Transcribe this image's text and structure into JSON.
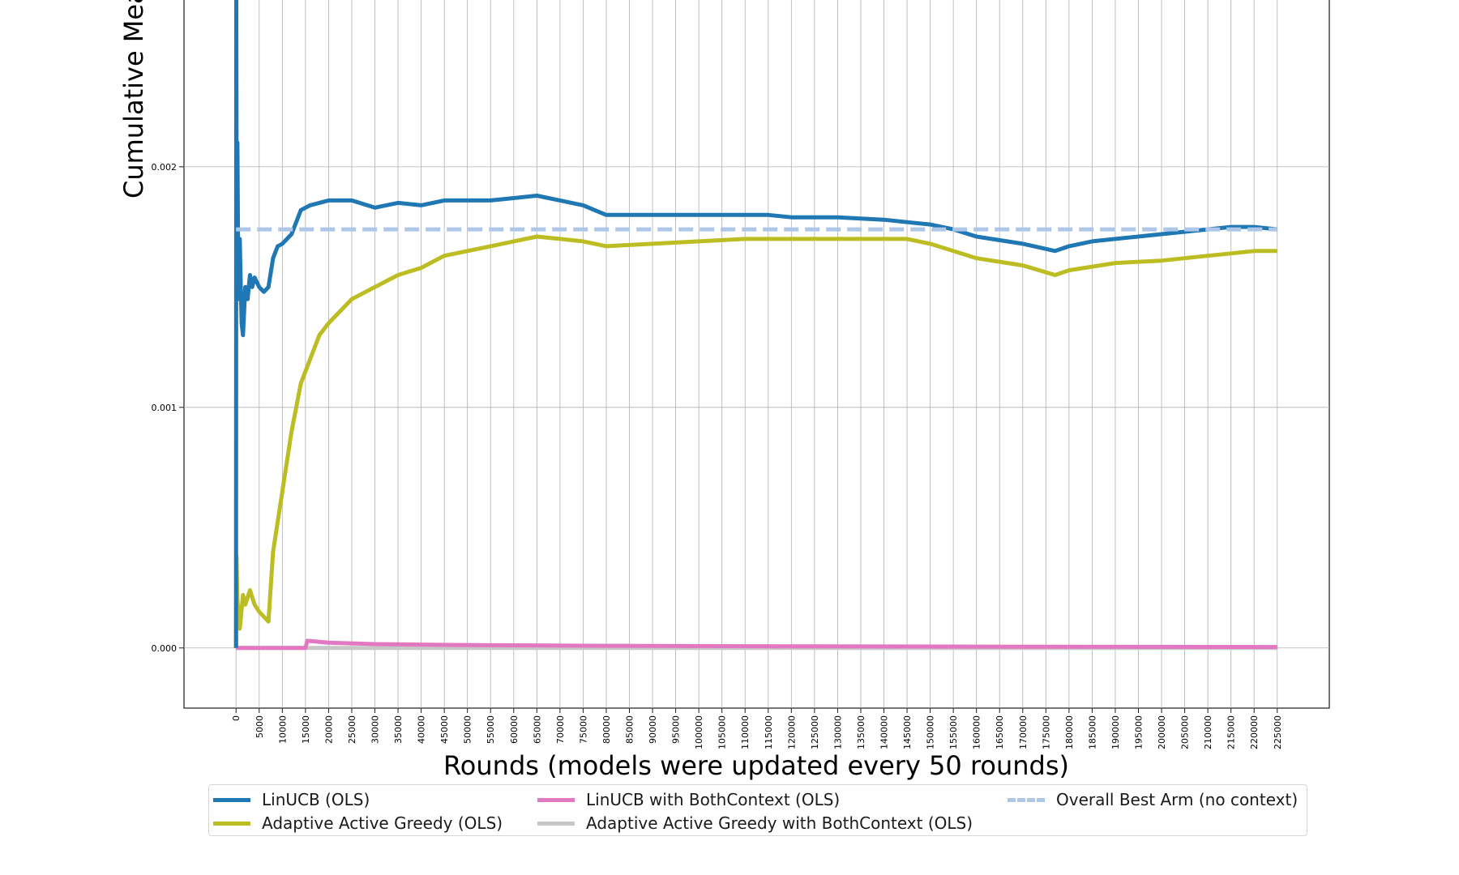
{
  "chart_data": {
    "type": "line",
    "xlabel": "Rounds (models were updated every 50 rounds)",
    "ylabel": "Cumulative Mea",
    "xlim": [
      -11250,
      236250
    ],
    "ylim": [
      -0.00025,
      0.0027
    ],
    "x_ticks": [
      0,
      5000,
      10000,
      15000,
      20000,
      25000,
      30000,
      35000,
      40000,
      45000,
      50000,
      55000,
      60000,
      65000,
      70000,
      75000,
      80000,
      85000,
      90000,
      95000,
      100000,
      105000,
      110000,
      115000,
      120000,
      125000,
      130000,
      135000,
      140000,
      145000,
      150000,
      155000,
      160000,
      165000,
      170000,
      175000,
      180000,
      185000,
      190000,
      195000,
      200000,
      205000,
      210000,
      215000,
      220000,
      225000
    ],
    "y_ticks": [
      0.0,
      0.001,
      0.002
    ],
    "y_tick_labels": [
      "0.000",
      "0.001",
      "0.002"
    ],
    "grid": true,
    "legend_position": "bottom-center",
    "series": [
      {
        "name": "LinUCB (OLS)",
        "color": "#1f77b4",
        "style": "solid",
        "points": [
          [
            0,
            0.0
          ],
          [
            50,
            0.0027
          ],
          [
            150,
            0.0016
          ],
          [
            300,
            0.0021
          ],
          [
            500,
            0.00145
          ],
          [
            800,
            0.0017
          ],
          [
            1200,
            0.00135
          ],
          [
            1500,
            0.0013
          ],
          [
            2000,
            0.0015
          ],
          [
            2500,
            0.00145
          ],
          [
            3000,
            0.00155
          ],
          [
            3500,
            0.0015
          ],
          [
            4000,
            0.00154
          ],
          [
            5000,
            0.0015
          ],
          [
            6000,
            0.00148
          ],
          [
            7000,
            0.0015
          ],
          [
            8000,
            0.00162
          ],
          [
            9000,
            0.00167
          ],
          [
            10000,
            0.00168
          ],
          [
            12000,
            0.00172
          ],
          [
            14000,
            0.00182
          ],
          [
            16000,
            0.00184
          ],
          [
            20000,
            0.00186
          ],
          [
            25000,
            0.00186
          ],
          [
            30000,
            0.00183
          ],
          [
            35000,
            0.00185
          ],
          [
            40000,
            0.00184
          ],
          [
            45000,
            0.00186
          ],
          [
            50000,
            0.00186
          ],
          [
            55000,
            0.00186
          ],
          [
            60000,
            0.00187
          ],
          [
            65000,
            0.00188
          ],
          [
            70000,
            0.00186
          ],
          [
            75000,
            0.00184
          ],
          [
            80000,
            0.0018
          ],
          [
            90000,
            0.0018
          ],
          [
            100000,
            0.0018
          ],
          [
            110000,
            0.0018
          ],
          [
            115000,
            0.0018
          ],
          [
            120000,
            0.00179
          ],
          [
            130000,
            0.00179
          ],
          [
            140000,
            0.00178
          ],
          [
            145000,
            0.00177
          ],
          [
            150000,
            0.00176
          ],
          [
            155000,
            0.00174
          ],
          [
            160000,
            0.00171
          ],
          [
            170000,
            0.00168
          ],
          [
            177000,
            0.00165
          ],
          [
            180000,
            0.00167
          ],
          [
            185000,
            0.00169
          ],
          [
            190000,
            0.0017
          ],
          [
            200000,
            0.00172
          ],
          [
            210000,
            0.00174
          ],
          [
            215000,
            0.00175
          ],
          [
            220000,
            0.00175
          ],
          [
            225000,
            0.00174
          ]
        ]
      },
      {
        "name": "Adaptive Active Greedy (OLS)",
        "color": "#bcbd22",
        "style": "solid",
        "points": [
          [
            0,
            0.0
          ],
          [
            100,
            0.00038
          ],
          [
            300,
            0.0002
          ],
          [
            800,
            8e-05
          ],
          [
            1500,
            0.00022
          ],
          [
            2000,
            0.00018
          ],
          [
            3000,
            0.00024
          ],
          [
            4000,
            0.00018
          ],
          [
            5000,
            0.00015
          ],
          [
            6000,
            0.00013
          ],
          [
            7000,
            0.00011
          ],
          [
            8000,
            0.0004
          ],
          [
            10000,
            0.00065
          ],
          [
            12000,
            0.0009
          ],
          [
            14000,
            0.0011
          ],
          [
            16000,
            0.0012
          ],
          [
            18000,
            0.0013
          ],
          [
            20000,
            0.00135
          ],
          [
            25000,
            0.00145
          ],
          [
            30000,
            0.0015
          ],
          [
            35000,
            0.00155
          ],
          [
            40000,
            0.00158
          ],
          [
            45000,
            0.00163
          ],
          [
            50000,
            0.00165
          ],
          [
            55000,
            0.00167
          ],
          [
            60000,
            0.00169
          ],
          [
            65000,
            0.00171
          ],
          [
            70000,
            0.0017
          ],
          [
            75000,
            0.00169
          ],
          [
            80000,
            0.00167
          ],
          [
            90000,
            0.00168
          ],
          [
            100000,
            0.00169
          ],
          [
            110000,
            0.0017
          ],
          [
            120000,
            0.0017
          ],
          [
            130000,
            0.0017
          ],
          [
            140000,
            0.0017
          ],
          [
            145000,
            0.0017
          ],
          [
            150000,
            0.00168
          ],
          [
            155000,
            0.00165
          ],
          [
            160000,
            0.00162
          ],
          [
            170000,
            0.00159
          ],
          [
            177000,
            0.00155
          ],
          [
            180000,
            0.00157
          ],
          [
            190000,
            0.0016
          ],
          [
            200000,
            0.00161
          ],
          [
            210000,
            0.00163
          ],
          [
            215000,
            0.00164
          ],
          [
            220000,
            0.00165
          ],
          [
            225000,
            0.00165
          ]
        ]
      },
      {
        "name": "LinUCB with BothContext (OLS)",
        "color": "#e377c2",
        "style": "solid",
        "points": [
          [
            0,
            0.0
          ],
          [
            15000,
            0.0
          ],
          [
            15400,
            3e-05
          ],
          [
            20000,
            2.2e-05
          ],
          [
            30000,
            1.6e-05
          ],
          [
            50000,
            1.2e-05
          ],
          [
            80000,
            9e-06
          ],
          [
            120000,
            7e-06
          ],
          [
            170000,
            5e-06
          ],
          [
            225000,
            4e-06
          ]
        ]
      },
      {
        "name": "Adaptive Active Greedy with BothContext (OLS)",
        "color": "#c7c7c7",
        "style": "solid",
        "points": [
          [
            0,
            0.0
          ],
          [
            225000,
            0.0
          ]
        ]
      },
      {
        "name": "Overall Best Arm (no context)",
        "color": "#aec7e8",
        "style": "dashed",
        "points": [
          [
            0,
            0.00174
          ],
          [
            225000,
            0.00174
          ]
        ]
      }
    ]
  }
}
